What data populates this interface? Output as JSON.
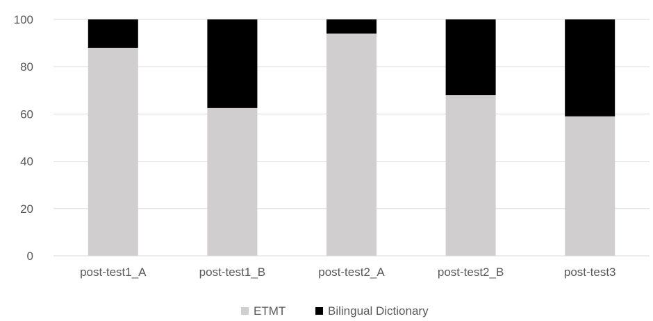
{
  "chart_data": {
    "type": "bar",
    "stacked": true,
    "categories": [
      "post-test1_A",
      "post-test1_B",
      "post-test2_A",
      "post-test2_B",
      "post-test3"
    ],
    "series": [
      {
        "name": "ETMT",
        "values": [
          88,
          62.5,
          94,
          68,
          59
        ],
        "color": "#d0cece"
      },
      {
        "name": "Bilingual Dictionary",
        "values": [
          12,
          37.5,
          6,
          32,
          41
        ],
        "color": "#000000"
      }
    ],
    "ylim": [
      0,
      100
    ],
    "yticks": [
      0,
      20,
      40,
      60,
      80,
      100
    ],
    "grid": true,
    "gridColor": "#d9d9d9",
    "legend_position": "bottom",
    "title": "",
    "xlabel": "",
    "ylabel": ""
  }
}
